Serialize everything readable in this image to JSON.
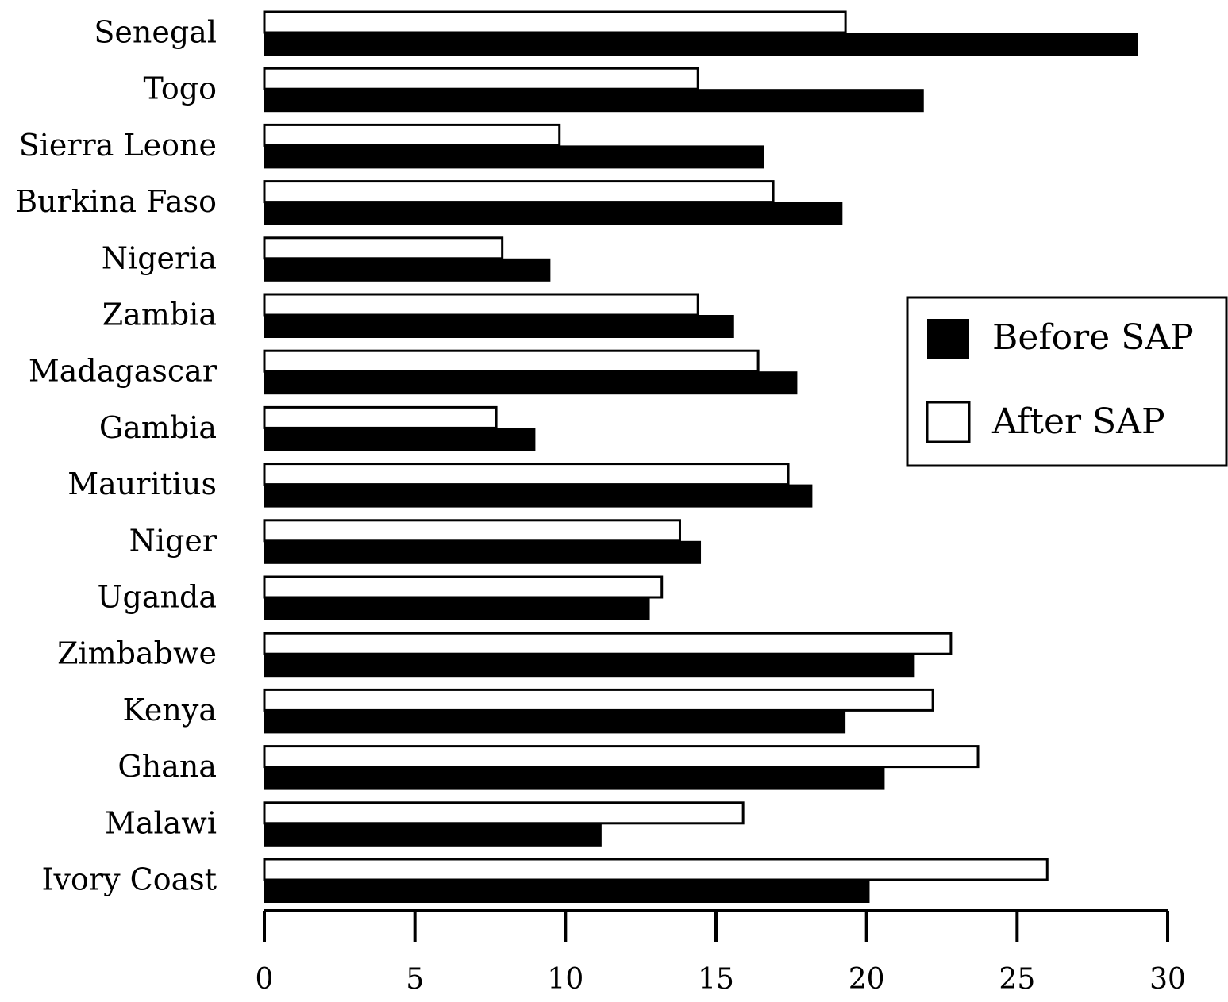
{
  "chart_data": {
    "type": "bar",
    "orientation": "horizontal",
    "title": "",
    "xlabel": "",
    "ylabel": "",
    "xlim": [
      0,
      30
    ],
    "xticks": [
      0,
      5,
      10,
      15,
      20,
      25,
      30
    ],
    "xtick_labels": [
      "0",
      "5",
      "10",
      "15",
      "20",
      "25",
      "30"
    ],
    "grid": false,
    "legend_position": "right",
    "categories": [
      "Senegal",
      "Togo",
      "Sierra Leone",
      "Burkina Faso",
      "Nigeria",
      "Zambia",
      "Madagascar",
      "Gambia",
      "Mauritius",
      "Niger",
      "Uganda",
      "Zimbabwe",
      "Kenya",
      "Ghana",
      "Malawi",
      "Ivory Coast"
    ],
    "series": [
      {
        "name": "Before SAP",
        "color": "#000000",
        "values": [
          29.0,
          21.9,
          16.6,
          19.2,
          9.5,
          15.6,
          17.7,
          9.0,
          18.2,
          14.5,
          12.8,
          21.6,
          19.3,
          20.6,
          11.2,
          20.1
        ]
      },
      {
        "name": "After SAP",
        "color": "#ffffff",
        "values": [
          19.3,
          14.4,
          9.8,
          16.9,
          7.9,
          14.4,
          16.4,
          7.7,
          17.4,
          13.8,
          13.2,
          22.8,
          22.2,
          23.7,
          15.9,
          26.0
        ]
      }
    ]
  }
}
